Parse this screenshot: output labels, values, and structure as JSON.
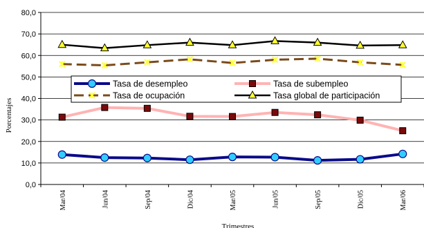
{
  "chart_data": {
    "type": "line",
    "title": "",
    "xlabel": "Trimestres",
    "ylabel": "Porcentajes",
    "ylim": [
      0,
      80
    ],
    "yticks": [
      "0,0",
      "10,0",
      "20,0",
      "30,0",
      "40,0",
      "50,0",
      "60,0",
      "70,0",
      "80,0"
    ],
    "categories": [
      "Mar/04",
      "Jun/04",
      "Sep/04",
      "Dic/04",
      "Mar/05",
      "Jun/05",
      "Sep/05",
      "Dic/05",
      "Mar/06"
    ],
    "grid": true,
    "legend": "inside-middle",
    "series": [
      {
        "name": "Tasa de desempleo",
        "values": [
          13.9,
          12.5,
          12.3,
          11.5,
          12.8,
          12.7,
          11.2,
          11.7,
          14.2
        ],
        "color": "#0a0a8a",
        "marker": "circle",
        "marker_fill": "#33ccff",
        "style": "solid"
      },
      {
        "name": "Tasa de subempleo",
        "values": [
          31.3,
          35.8,
          35.4,
          31.7,
          31.6,
          33.5,
          32.4,
          29.9,
          25.0
        ],
        "color": "#ffb3b3",
        "marker": "square",
        "marker_fill": "#7a0a0a",
        "style": "solid"
      },
      {
        "name": "Tasa de ocupación",
        "values": [
          56.0,
          55.4,
          56.8,
          58.2,
          56.5,
          58.0,
          58.5,
          56.8,
          55.6
        ],
        "color": "#7a4a1a",
        "marker": "asterisk",
        "marker_fill": "#ffff33",
        "style": "dashed"
      },
      {
        "name": "Tasa global de participación",
        "values": [
          65.0,
          63.4,
          64.8,
          66.0,
          64.8,
          66.7,
          66.0,
          64.6,
          64.8
        ],
        "color": "#000000",
        "marker": "triangle",
        "marker_fill": "#ffff33",
        "style": "solid"
      }
    ]
  }
}
